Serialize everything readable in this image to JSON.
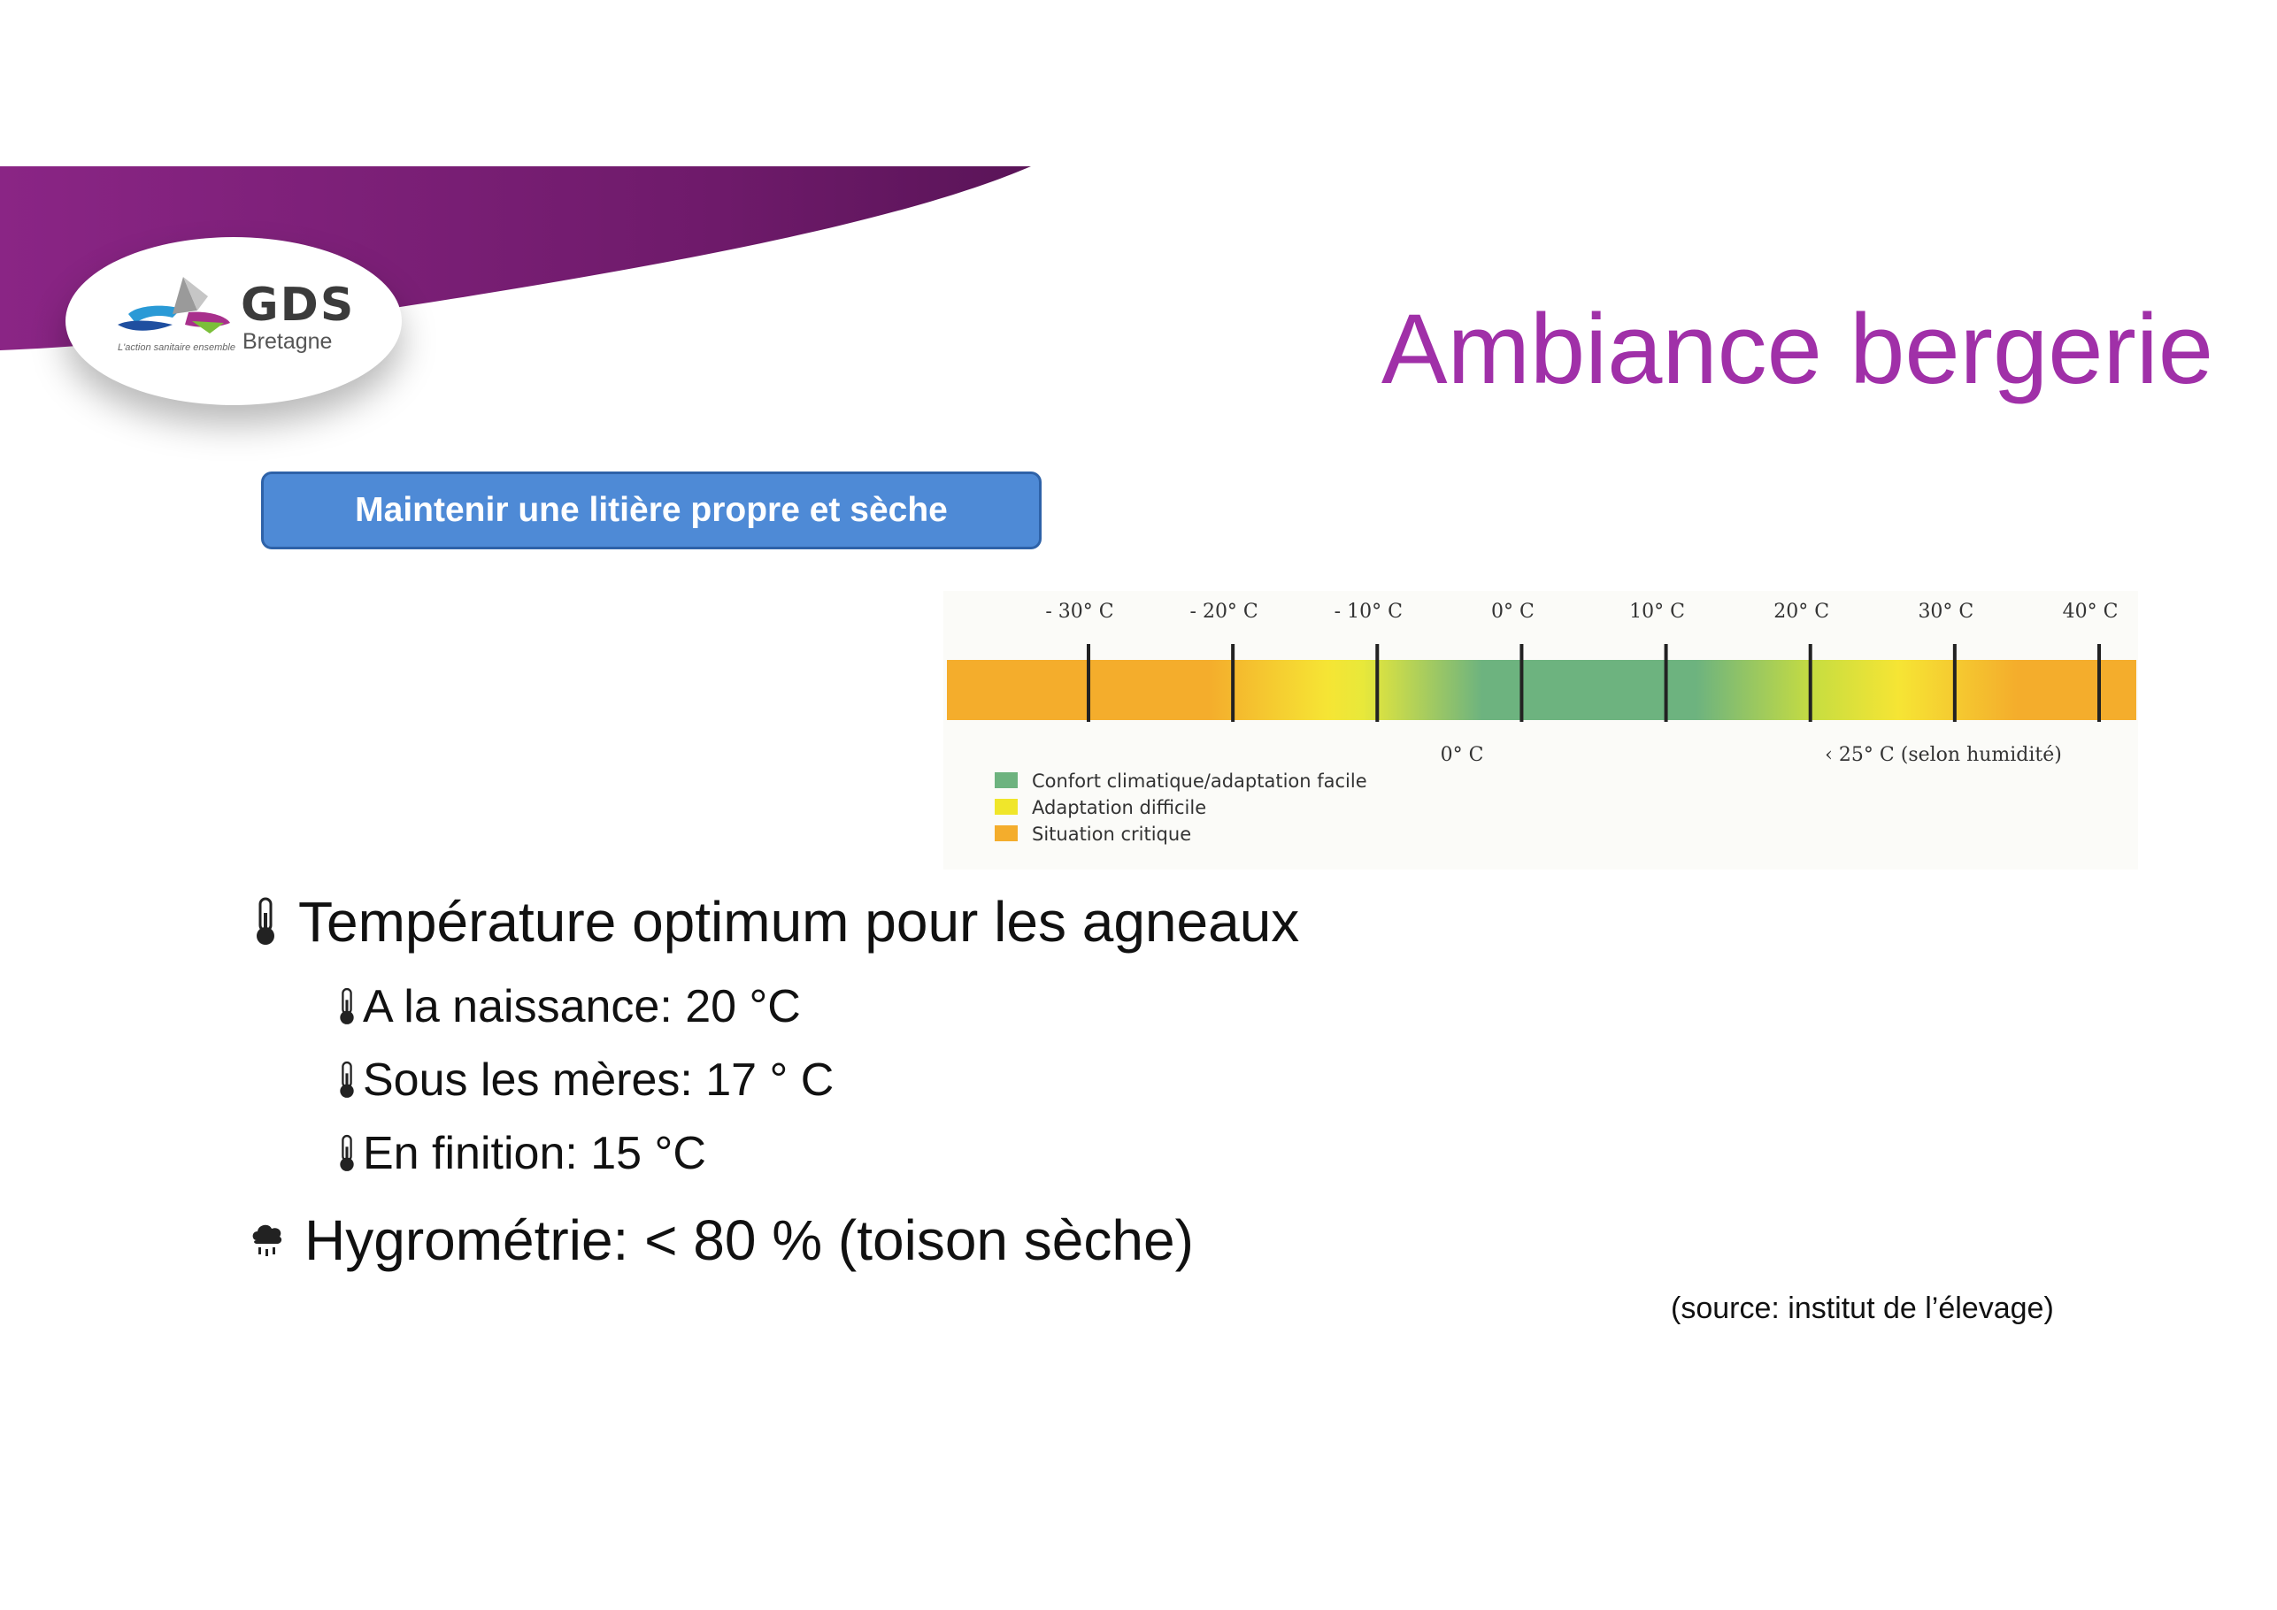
{
  "header": {
    "title": "Ambiance bergerie",
    "logo": {
      "name": "GDS",
      "region": "Bretagne",
      "tagline": "L'action sanitaire ensemble"
    }
  },
  "callout": {
    "label": "Maintenir une litière propre et sèche"
  },
  "temperature_scale": {
    "ticks": [
      {
        "label": "- 30° C",
        "value": -30
      },
      {
        "label": "- 20° C",
        "value": -20
      },
      {
        "label": "- 10° C",
        "value": -10
      },
      {
        "label": "0° C",
        "value": 0
      },
      {
        "label": "10° C",
        "value": 10
      },
      {
        "label": "20° C",
        "value": 20
      },
      {
        "label": "30° C",
        "value": 30
      },
      {
        "label": "40° C",
        "value": 40
      }
    ],
    "markers": {
      "lower": "0° C",
      "upper": "‹ 25° C (selon humidité)"
    },
    "legend": [
      {
        "label": "Confort climatique/adaptation facile",
        "color": "#6db37f"
      },
      {
        "label": "Adaptation difficile",
        "color": "#f0e62a"
      },
      {
        "label": "Situation critique",
        "color": "#f4ad2c"
      }
    ]
  },
  "bullets": {
    "temperature": {
      "label": "Température optimum pour les agneaux",
      "icon": "thermometer-icon",
      "items": [
        {
          "label": "A la naissance: 20 °C"
        },
        {
          "label": "Sous les mères: 17 ° C"
        },
        {
          "label": "En finition: 15 °C"
        }
      ]
    },
    "humidity": {
      "label": "Hygrométrie: < 80 % (toison sèche)",
      "icon": "rain-cloud-icon"
    }
  },
  "source": "(source: institut de l’élevage)",
  "colors": {
    "accent": "#a030a8",
    "button": "#4e8ad6",
    "swoosh": "#7a1f78"
  }
}
